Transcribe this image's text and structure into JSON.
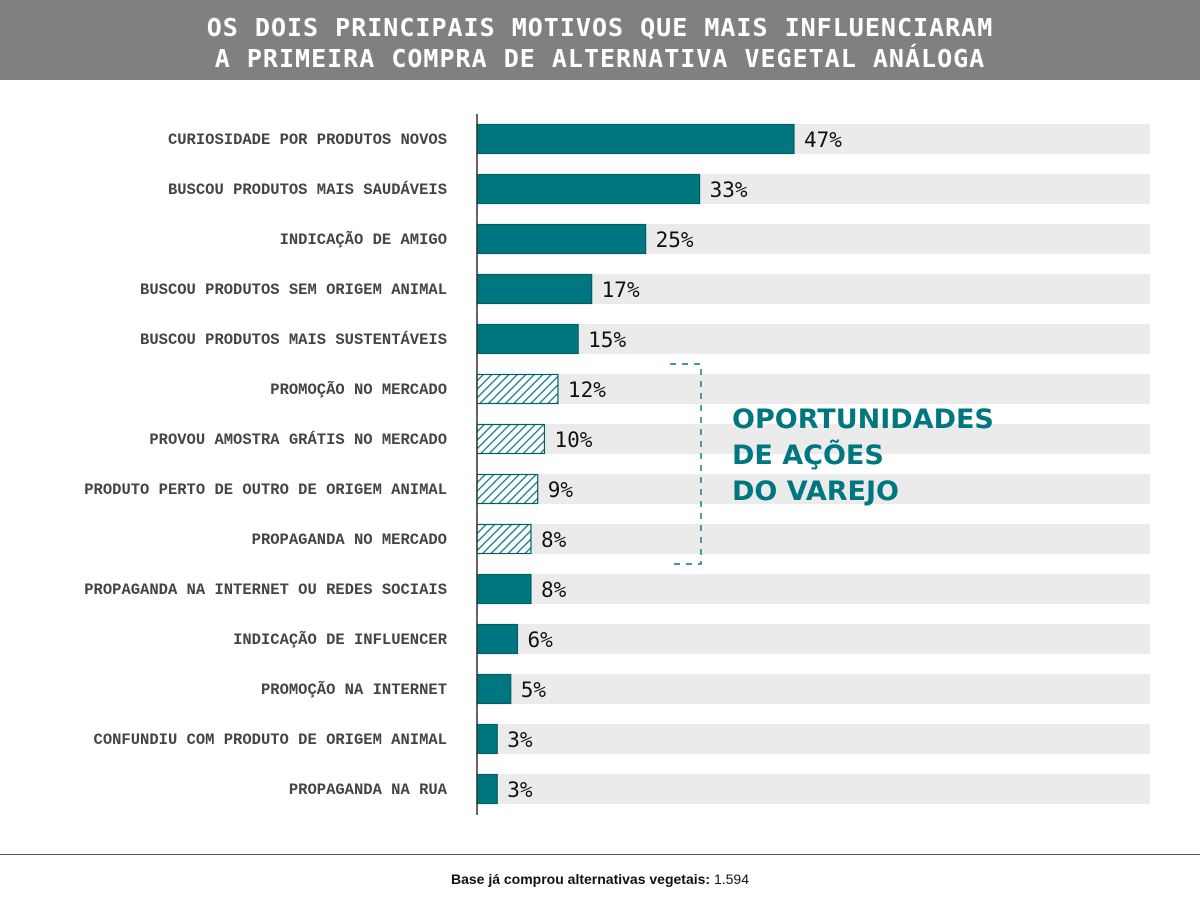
{
  "header": {
    "line1": "OS DOIS PRINCIPAIS MOTIVOS QUE MAIS INFLUENCIARAM",
    "line2": "A PRIMEIRA COMPRA DE ALTERNATIVA VEGETAL ANÁLOGA"
  },
  "callout": {
    "line1": "OPORTUNIDADES",
    "line2": "DE AÇÕES",
    "line3": "DO VAREJO"
  },
  "footer": {
    "label": "Base já comprou alternativas vegetais:",
    "value": "1.594"
  },
  "colors": {
    "bar": "#007780",
    "track": "#ebebeb",
    "header_bg": "#808080"
  },
  "chart_data": {
    "type": "bar",
    "orientation": "horizontal",
    "title": "OS DOIS PRINCIPAIS MOTIVOS QUE MAIS INFLUENCIARAM A PRIMEIRA COMPRA DE ALTERNATIVA VEGETAL ANÁLOGA",
    "categories": [
      "CURIOSIDADE POR PRODUTOS NOVOS",
      "BUSCOU PRODUTOS MAIS SAUDÁVEIS",
      "INDICAÇÃO DE AMIGO",
      "BUSCOU PRODUTOS SEM ORIGEM ANIMAL",
      "BUSCOU PRODUTOS MAIS SUSTENTÁVEIS",
      "PROMOÇÃO NO MERCADO",
      "PROVOU AMOSTRA GRÁTIS NO MERCADO",
      "PRODUTO PERTO DE OUTRO DE ORIGEM ANIMAL",
      "PROPAGANDA NO MERCADO",
      "PROPAGANDA NA INTERNET OU REDES SOCIAIS",
      "INDICAÇÃO DE INFLUENCER",
      "PROMOÇÃO NA INTERNET",
      "CONFUNDIU COM PRODUTO DE ORIGEM ANIMAL",
      "PROPAGANDA NA RUA"
    ],
    "values": [
      47,
      33,
      25,
      17,
      15,
      12,
      10,
      9,
      8,
      8,
      6,
      5,
      3,
      3
    ],
    "labels": [
      "47%",
      "33%",
      "25%",
      "17%",
      "15%",
      "12%",
      "10%",
      "9%",
      "8%",
      "8%",
      "6%",
      "5%",
      "3%",
      "3%"
    ],
    "highlighted": [
      false,
      false,
      false,
      false,
      false,
      true,
      true,
      true,
      true,
      false,
      false,
      false,
      false,
      false
    ],
    "xlim": [
      0,
      100
    ],
    "unit": "%"
  }
}
